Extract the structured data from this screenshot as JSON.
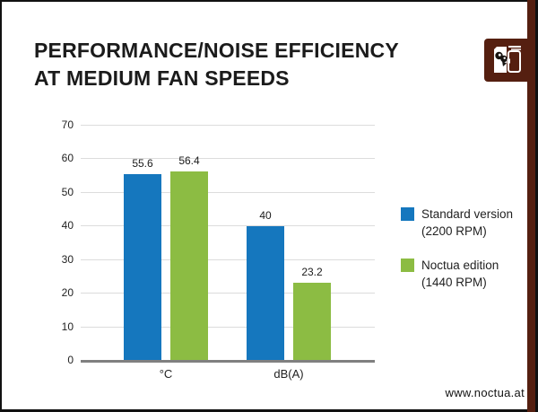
{
  "title": {
    "line1": "PERFORMANCE/NOISE EFFICIENCY",
    "line2": "AT MEDIUM FAN SPEEDS"
  },
  "footer": {
    "website": "www.noctua.at"
  },
  "colors": {
    "brand_brown": "#551F10",
    "series1_blue": "#1577BE",
    "series2_green": "#8CBC43",
    "axis_gray": "#808080",
    "gridline_gray": "#DCDCDC",
    "text_black": "#1B1B1B"
  },
  "chart_data": {
    "type": "bar",
    "title": "PERFORMANCE/NOISE EFFICIENCY AT MEDIUM FAN SPEEDS",
    "categories": [
      "°C",
      "dB(A)"
    ],
    "series": [
      {
        "name": "Standard version (2200 RPM)",
        "legend_line1": "Standard version",
        "legend_line2": "(2200 RPM)",
        "color": "#1577BE",
        "values": [
          55.6,
          40
        ]
      },
      {
        "name": "Noctua edition (1440 RPM)",
        "legend_line1": "Noctua edition",
        "legend_line2": "(1440 RPM)",
        "color": "#8CBC43",
        "values": [
          56.4,
          23.2
        ]
      }
    ],
    "value_labels": [
      [
        "55.6",
        "40"
      ],
      [
        "56.4",
        "23.2"
      ]
    ],
    "ylim": [
      0,
      70
    ],
    "yticks": [
      0,
      10,
      20,
      30,
      40,
      50,
      60,
      70
    ],
    "grid": true,
    "legend_position": "right",
    "xlabel": "",
    "ylabel": ""
  }
}
